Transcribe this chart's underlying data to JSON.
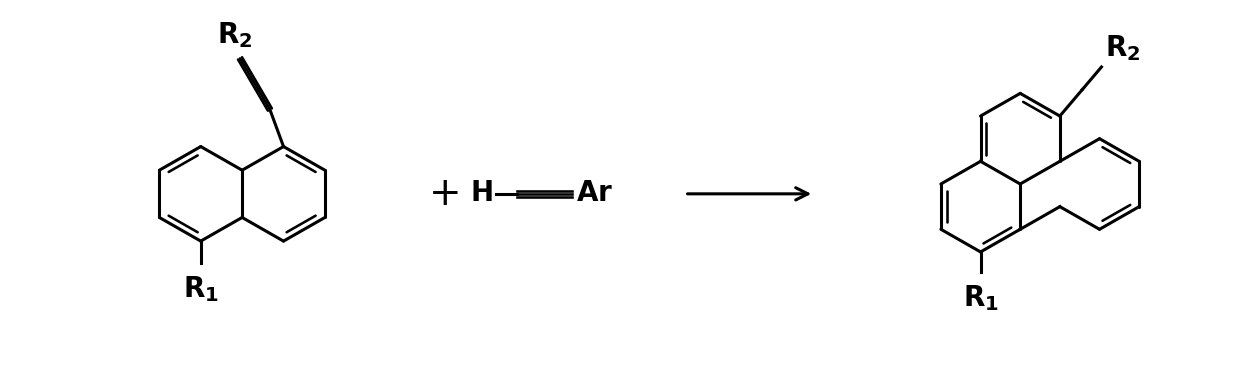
{
  "bg_color": "#ffffff",
  "line_color": "#000000",
  "line_width": 2.2,
  "bold_font_size": 20,
  "fig_width": 12.4,
  "fig_height": 3.66,
  "dpi": 100,
  "hex_r": 0.48,
  "p_hex_r": 0.46
}
